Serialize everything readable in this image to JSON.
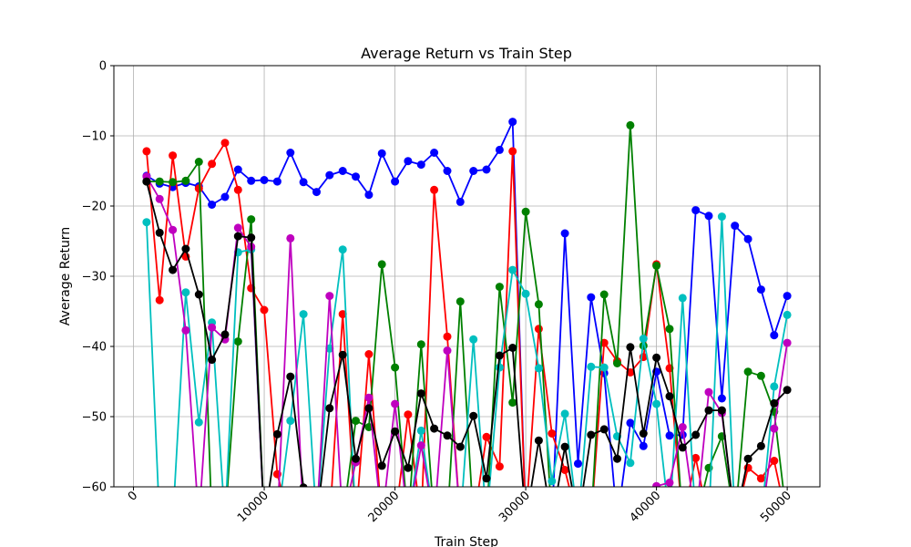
{
  "chart_data": {
    "type": "line",
    "title": "Average Return vs Train Step",
    "xlabel": "Train Step",
    "ylabel": "Average Return",
    "xlim": [
      -1500,
      52500
    ],
    "ylim": [
      -60,
      0
    ],
    "xticks": [
      0,
      10000,
      20000,
      30000,
      40000,
      50000
    ],
    "xtick_labels": [
      "0",
      "10000",
      "20000",
      "30000",
      "40000",
      "50000"
    ],
    "yticks": [
      0,
      -10,
      -20,
      -30,
      -40,
      -50,
      -60
    ],
    "ytick_labels": [
      "0",
      "−10",
      "−20",
      "−30",
      "−40",
      "−50",
      "−60"
    ],
    "grid": true,
    "x": [
      1000,
      2000,
      3000,
      4000,
      5000,
      6000,
      7000,
      8000,
      9000,
      10000,
      11000,
      12000,
      13000,
      14000,
      15000,
      16000,
      17000,
      18000,
      19000,
      20000,
      21000,
      22000,
      23000,
      24000,
      25000,
      26000,
      27000,
      28000,
      29000,
      30000,
      31000,
      32000,
      33000,
      34000,
      35000,
      36000,
      37000,
      38000,
      39000,
      40000,
      41000,
      42000,
      43000,
      44000,
      45000,
      46000,
      47000,
      48000,
      49000,
      50000
    ],
    "series": [
      {
        "color": "#0000ff",
        "values": [
          -15.7,
          -16.8,
          -17.3,
          -16.7,
          -17.2,
          -19.8,
          -18.7,
          -14.8,
          -16.4,
          -16.3,
          -16.5,
          -12.4,
          -16.6,
          -18.0,
          -15.6,
          -15.0,
          -15.8,
          -18.4,
          -12.5,
          -16.5,
          -13.6,
          -14.1,
          -12.4,
          -15.0,
          -19.4,
          -15.0,
          -14.8,
          -12.0,
          -8.0,
          -65,
          -65,
          -65,
          -23.9,
          -56.7,
          -33.0,
          -43.8,
          -65,
          -50.9,
          -54.2,
          -43.6,
          -52.7,
          -52.6,
          -20.6,
          -21.4,
          -47.4,
          -22.8,
          -24.7,
          -31.9,
          -38.4,
          -32.8
        ]
      },
      {
        "color": "#ff0000",
        "values": [
          -12.2,
          -33.4,
          -12.8,
          -27.2,
          -17.5,
          -14.0,
          -11.0,
          -17.7,
          -31.7,
          -34.8,
          -58.2,
          -65,
          -65,
          -65,
          -65,
          -35.4,
          -65,
          -41.1,
          -65,
          -65,
          -49.7,
          -65,
          -17.7,
          -38.6,
          -65,
          -65,
          -52.9,
          -57.1,
          -12.2,
          -65,
          -37.5,
          -52.4,
          -57.6,
          -65,
          -65,
          -39.5,
          -42.1,
          -43.7,
          -41.5,
          -28.3,
          -43.1,
          -65,
          -55.9,
          -65,
          -65,
          -65,
          -57.3,
          -58.8,
          -56.3,
          -65
        ]
      },
      {
        "color": "#008000",
        "values": [
          -16.5,
          -16.5,
          -16.6,
          -16.4,
          -13.7,
          -65,
          -65,
          -39.3,
          -21.9,
          -65,
          -65,
          -65,
          -65,
          -65,
          -65,
          -65,
          -50.6,
          -51.5,
          -28.3,
          -43.0,
          -65,
          -39.7,
          -65,
          -65,
          -33.6,
          -65,
          -65,
          -31.5,
          -48.0,
          -20.8,
          -34.0,
          -65,
          -65,
          -65,
          -65,
          -32.6,
          -42.4,
          -8.5,
          -39.9,
          -28.5,
          -37.5,
          -65,
          -65,
          -57.3,
          -52.8,
          -65,
          -43.6,
          -44.2,
          -49.3,
          -65
        ]
      },
      {
        "color": "#00bfbf",
        "values": [
          -22.3,
          -65,
          -65,
          -32.3,
          -50.8,
          -36.6,
          -65,
          -26.6,
          -26.2,
          -65,
          -65,
          -50.6,
          -35.4,
          -65,
          -40.3,
          -26.2,
          -65,
          -65,
          -65,
          -65,
          -65,
          -52.0,
          -65,
          -65,
          -65,
          -39.0,
          -65,
          -43.0,
          -29.1,
          -32.5,
          -43.1,
          -59.2,
          -49.6,
          -65,
          -42.9,
          -43.0,
          -52.8,
          -56.6,
          -38.9,
          -48.2,
          -65,
          -33.1,
          -65,
          -65,
          -21.5,
          -65,
          -65,
          -65,
          -45.7,
          -35.5
        ]
      },
      {
        "color": "#bf00bf",
        "values": [
          -15.8,
          -19.0,
          -23.4,
          -37.7,
          -65,
          -37.3,
          -39.0,
          -23.1,
          -25.8,
          -65,
          -65,
          -24.6,
          -65,
          -65,
          -32.8,
          -65,
          -56.5,
          -47.3,
          -65,
          -48.2,
          -65,
          -54.1,
          -65,
          -40.6,
          -65,
          -65,
          -65,
          -65,
          -65,
          -65,
          -65,
          -65,
          -65,
          -65,
          -65,
          -65,
          -65,
          -65,
          -65,
          -59.9,
          -59.4,
          -51.5,
          -65,
          -46.5,
          -49.5,
          -65,
          -65,
          -65,
          -51.7,
          -39.5
        ]
      },
      {
        "color": "#000000",
        "values": [
          -16.5,
          -23.8,
          -29.1,
          -26.1,
          -32.6,
          -41.9,
          -38.3,
          -24.3,
          -24.5,
          -65,
          -52.5,
          -44.3,
          -60.1,
          -65,
          -48.8,
          -41.2,
          -56.0,
          -48.8,
          -57.0,
          -52.1,
          -57.3,
          -46.7,
          -51.7,
          -52.7,
          -54.3,
          -49.9,
          -58.8,
          -41.3,
          -40.2,
          -65,
          -53.4,
          -65,
          -54.3,
          -65,
          -52.6,
          -51.8,
          -56.0,
          -40.1,
          -52.4,
          -41.6,
          -47.1,
          -54.4,
          -52.6,
          -49.1,
          -49.1,
          -65,
          -56.0,
          -54.2,
          -48.1,
          -46.2
        ]
      }
    ]
  }
}
